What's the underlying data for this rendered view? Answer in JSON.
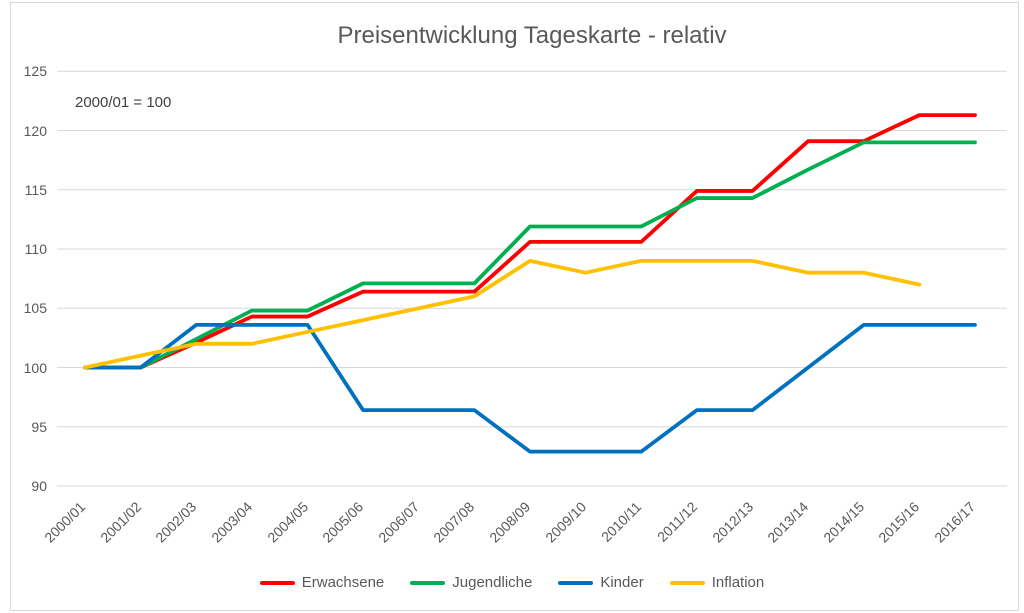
{
  "chart_data": {
    "type": "line",
    "title": "Preisentwicklung Tageskarte - relativ",
    "annotation": "2000/01 = 100",
    "categories": [
      "2000/01",
      "2001/02",
      "2002/03",
      "2003/04",
      "2004/05",
      "2005/06",
      "2006/07",
      "2007/08",
      "2008/09",
      "2009/10",
      "2010/11",
      "2011/12",
      "2012/13",
      "2013/14",
      "2014/15",
      "2015/16",
      "2016/17"
    ],
    "series": [
      {
        "name": "Erwachsene",
        "color": "#FF0000",
        "values": [
          100,
          100,
          102.1,
          104.3,
          104.3,
          106.4,
          106.4,
          106.4,
          110.6,
          110.6,
          110.6,
          114.9,
          114.9,
          119.1,
          119.1,
          121.3,
          121.3
        ]
      },
      {
        "name": "Jugendliche",
        "color": "#00B050",
        "values": [
          100,
          100,
          102.4,
          104.8,
          104.8,
          107.1,
          107.1,
          107.1,
          111.9,
          111.9,
          111.9,
          114.3,
          114.3,
          116.7,
          119.0,
          119.0,
          119.0
        ]
      },
      {
        "name": "Kinder",
        "color": "#0070C0",
        "values": [
          100,
          100,
          103.6,
          103.6,
          103.6,
          96.4,
          96.4,
          96.4,
          92.9,
          92.9,
          92.9,
          96.4,
          96.4,
          100,
          103.6,
          103.6,
          103.6
        ]
      },
      {
        "name": "Inflation",
        "color": "#FFC000",
        "values": [
          100,
          101,
          102,
          102,
          103,
          104,
          105,
          106,
          109,
          108,
          109,
          109,
          109,
          108,
          108,
          107,
          null
        ]
      }
    ],
    "yticks": [
      90,
      95,
      100,
      105,
      110,
      115,
      120,
      125
    ],
    "ylim": [
      90,
      125
    ],
    "grid": true,
    "legend_position": "bottom",
    "text_color": "#595959",
    "grid_color": "#D9D9D9"
  }
}
